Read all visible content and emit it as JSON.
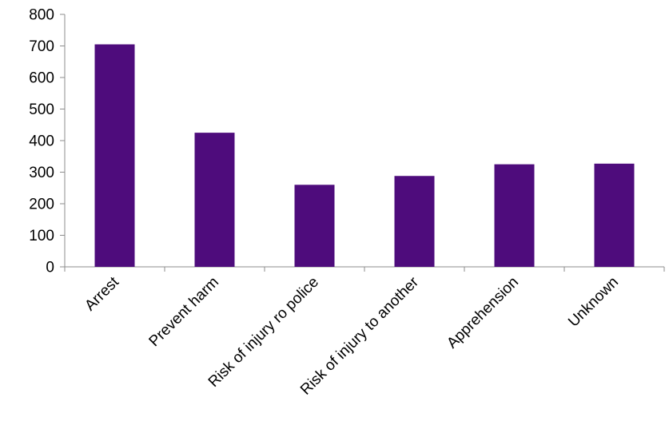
{
  "chart_data": {
    "type": "bar",
    "title": "",
    "xlabel": "",
    "ylabel": "",
    "categories": [
      "Arrest",
      "Prevent harm",
      "Risk of injury ro police",
      "Risk of injury to another",
      "Apprehension",
      "Unknown"
    ],
    "values": [
      705,
      425,
      260,
      288,
      325,
      327
    ],
    "ylim": [
      0,
      800
    ],
    "yticks": [
      0,
      100,
      200,
      300,
      400,
      500,
      600,
      700,
      800
    ],
    "grid": false,
    "legend": "none",
    "bar_color": "#4e0c7c"
  }
}
